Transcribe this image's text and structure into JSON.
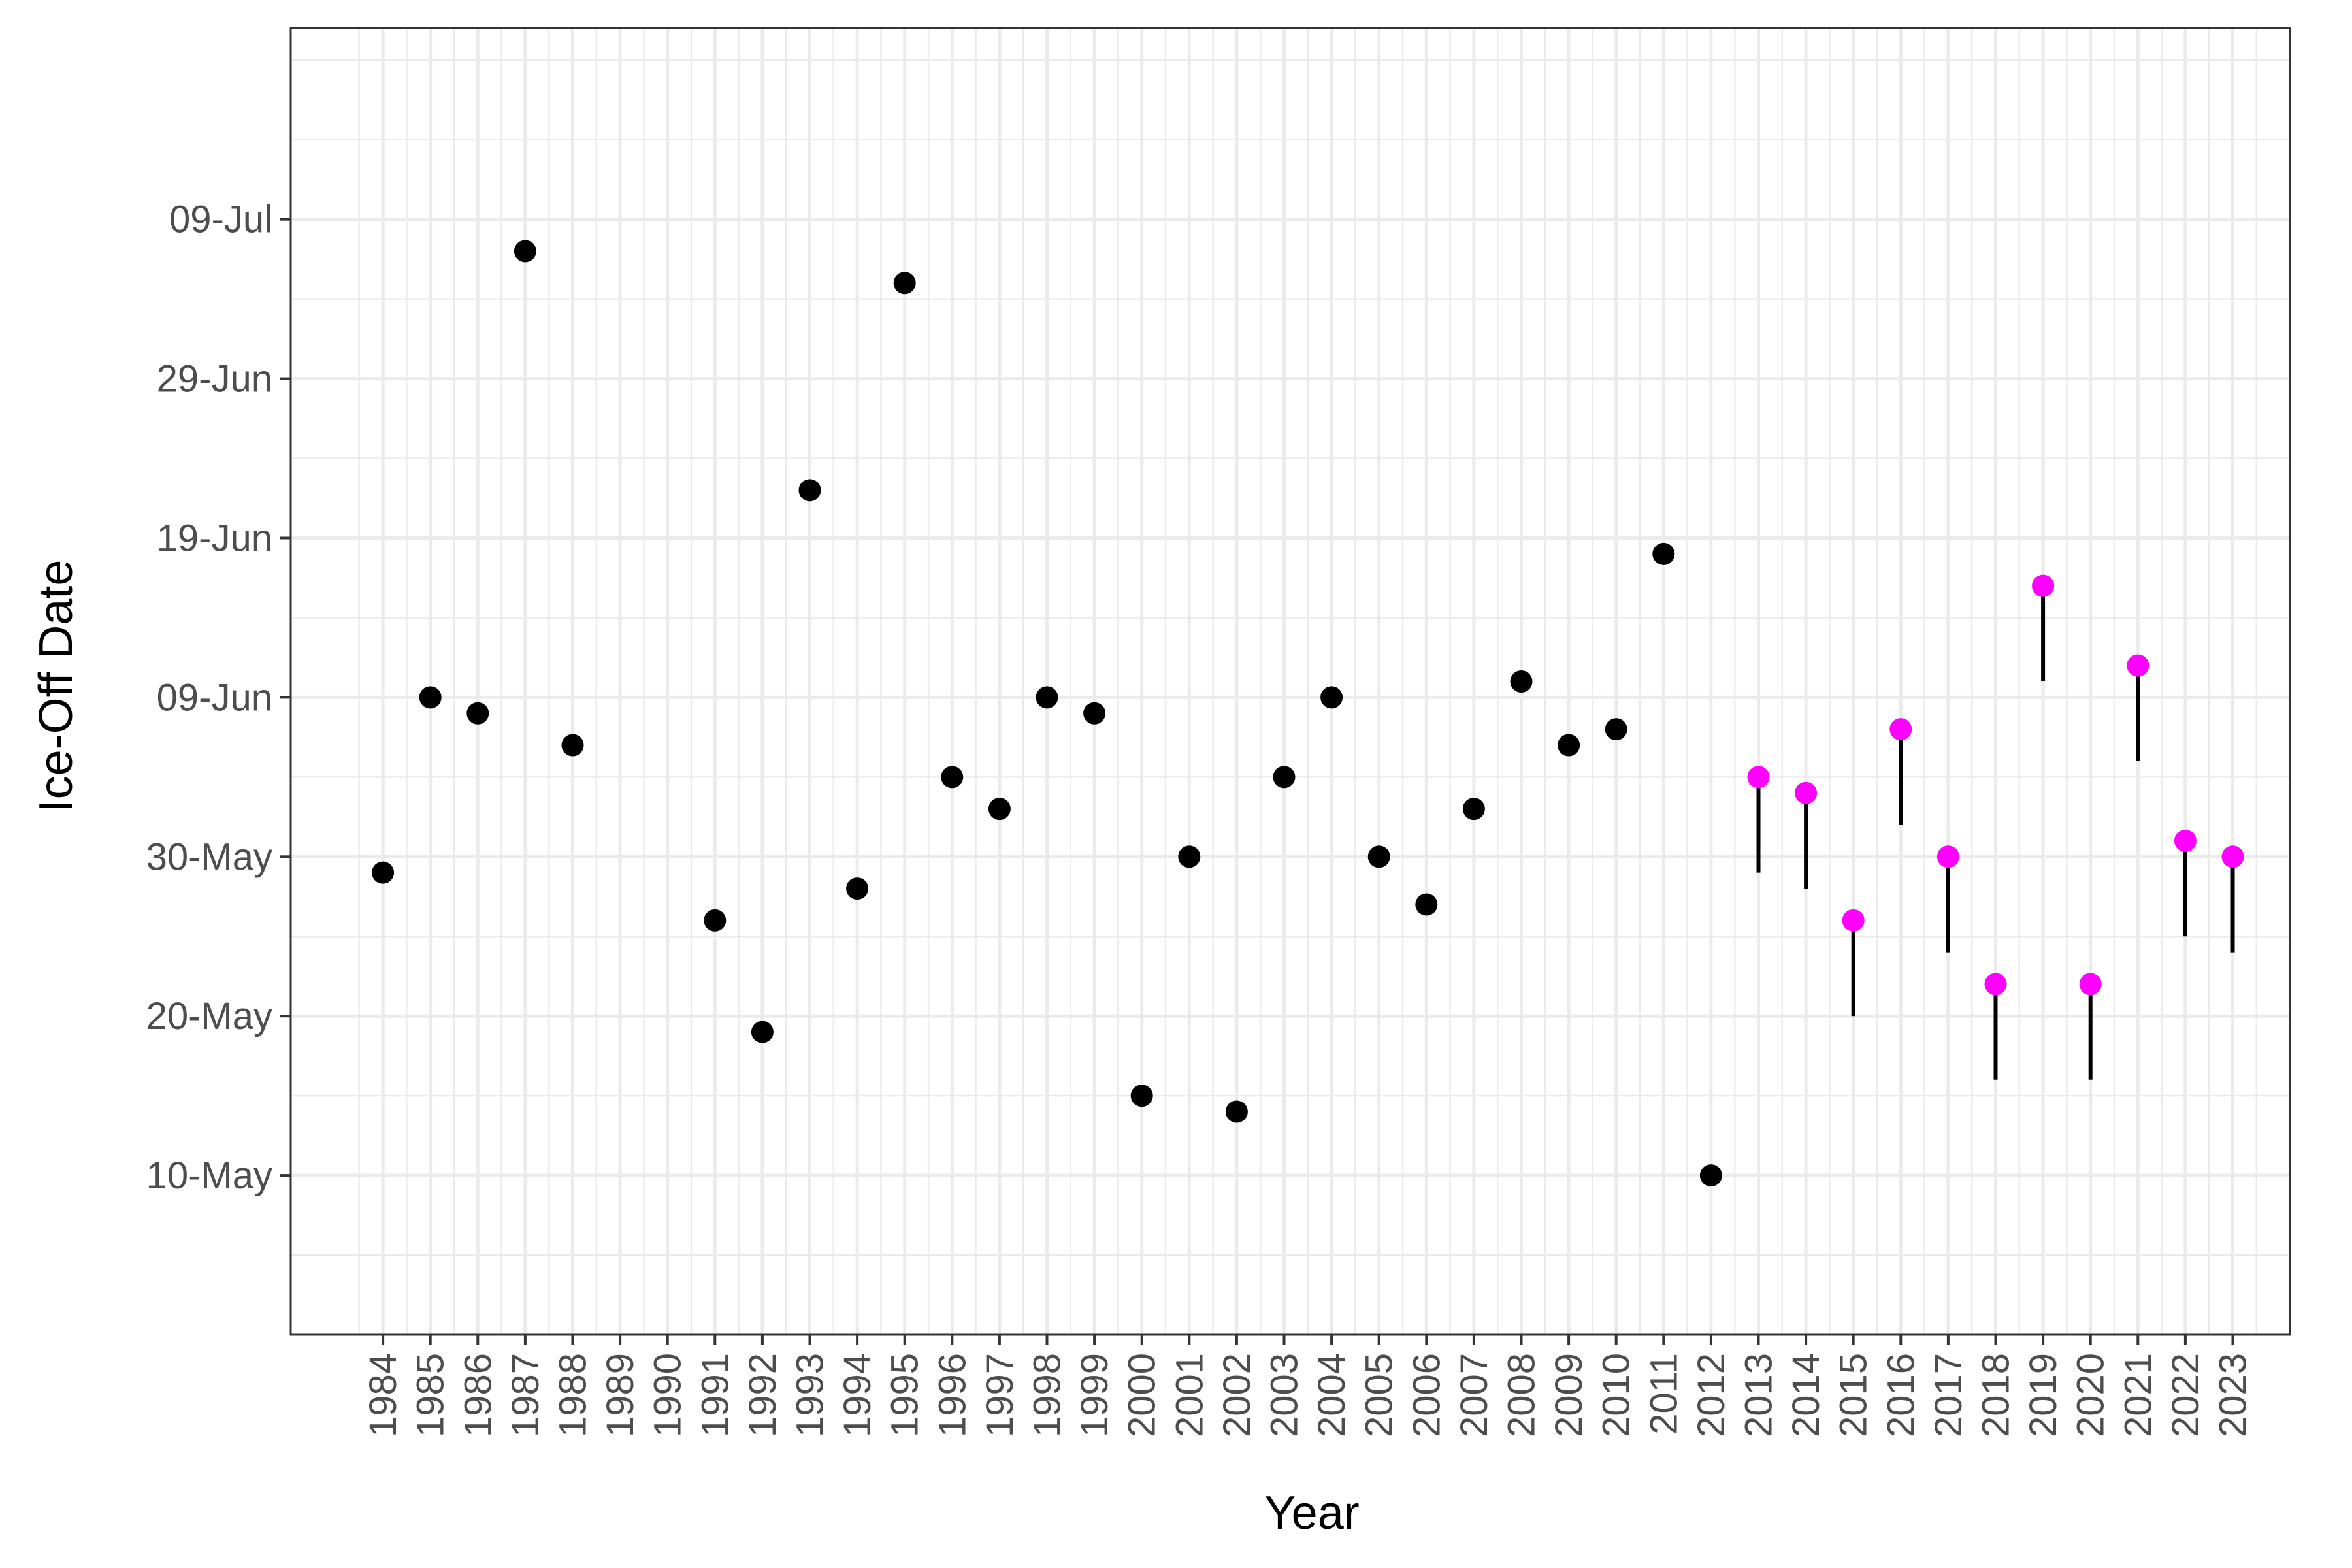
{
  "chart_data": {
    "type": "scatter",
    "xlabel": "Year",
    "ylabel": "Ice-Off Date",
    "x_categories": [
      "1984",
      "1985",
      "1986",
      "1987",
      "1988",
      "1989",
      "1990",
      "1991",
      "1992",
      "1993",
      "1994",
      "1995",
      "1996",
      "1997",
      "1998",
      "1999",
      "2000",
      "2001",
      "2002",
      "2003",
      "2004",
      "2005",
      "2006",
      "2007",
      "2008",
      "2009",
      "2010",
      "2011",
      "2012",
      "2013",
      "2014",
      "2015",
      "2016",
      "2017",
      "2018",
      "2019",
      "2020",
      "2021",
      "2022",
      "2023"
    ],
    "y_ticks": [
      "10-May",
      "20-May",
      "30-May",
      "09-Jun",
      "19-Jun",
      "29-Jun",
      "09-Jul"
    ],
    "y_range": [
      "30-Apr",
      "21-Jul"
    ],
    "grid": true,
    "colors": {
      "observed": "#000000",
      "highlighted": "#ff00ff",
      "segment": "#000000"
    },
    "series": [
      {
        "color": "#000000",
        "points": [
          {
            "x": "1984",
            "y": "29-May"
          },
          {
            "x": "1985",
            "y": "09-Jun"
          },
          {
            "x": "1986",
            "y": "08-Jun"
          },
          {
            "x": "1987",
            "y": "07-Jul"
          },
          {
            "x": "1988",
            "y": "06-Jun"
          },
          {
            "x": "1991",
            "y": "26-May"
          },
          {
            "x": "1992",
            "y": "19-May"
          },
          {
            "x": "1993",
            "y": "22-Jun"
          },
          {
            "x": "1994",
            "y": "28-May"
          },
          {
            "x": "1995",
            "y": "05-Jul"
          },
          {
            "x": "1996",
            "y": "04-Jun"
          },
          {
            "x": "1997",
            "y": "02-Jun"
          },
          {
            "x": "1998",
            "y": "09-Jun"
          },
          {
            "x": "1999",
            "y": "08-Jun"
          },
          {
            "x": "2000",
            "y": "15-May"
          },
          {
            "x": "2001",
            "y": "30-May"
          },
          {
            "x": "2002",
            "y": "14-May"
          },
          {
            "x": "2003",
            "y": "04-Jun"
          },
          {
            "x": "2004",
            "y": "09-Jun"
          },
          {
            "x": "2005",
            "y": "30-May"
          },
          {
            "x": "2006",
            "y": "27-May"
          },
          {
            "x": "2007",
            "y": "02-Jun"
          },
          {
            "x": "2008",
            "y": "10-Jun"
          },
          {
            "x": "2009",
            "y": "06-Jun"
          },
          {
            "x": "2010",
            "y": "07-Jun"
          },
          {
            "x": "2011",
            "y": "18-Jun"
          },
          {
            "x": "2012",
            "y": "10-May"
          }
        ]
      },
      {
        "color": "#ff00ff",
        "points": [
          {
            "x": "2013",
            "y": "04-Jun",
            "low": "29-May"
          },
          {
            "x": "2014",
            "y": "03-Jun",
            "low": "28-May"
          },
          {
            "x": "2015",
            "y": "26-May",
            "low": "20-May"
          },
          {
            "x": "2016",
            "y": "07-Jun",
            "low": "01-Jun"
          },
          {
            "x": "2017",
            "y": "30-May",
            "low": "24-May"
          },
          {
            "x": "2018",
            "y": "22-May",
            "low": "16-May"
          },
          {
            "x": "2019",
            "y": "16-Jun",
            "low": "10-Jun"
          },
          {
            "x": "2020",
            "y": "22-May",
            "low": "16-May"
          },
          {
            "x": "2021",
            "y": "11-Jun",
            "low": "05-Jun"
          },
          {
            "x": "2022",
            "y": "31-May",
            "low": "25-May"
          },
          {
            "x": "2023",
            "y": "30-May",
            "low": "24-May"
          }
        ]
      }
    ]
  }
}
